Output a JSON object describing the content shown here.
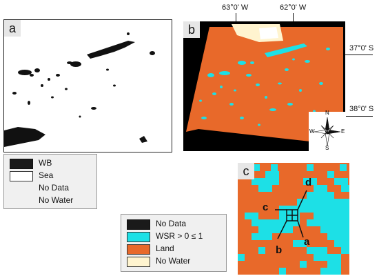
{
  "panels": {
    "a": {
      "label": "a"
    },
    "b": {
      "label": "b"
    },
    "c": {
      "label": "c"
    }
  },
  "coordinates": {
    "top": [
      "63°0' W",
      "62°0' W"
    ],
    "right": [
      "37°0' S",
      "38°0' S"
    ]
  },
  "compass": {
    "n": "N",
    "s": "S",
    "e": "E",
    "w": "W"
  },
  "legend_a": {
    "items": [
      {
        "label": "WB",
        "color": "#1a1a1a"
      },
      {
        "label": "Sea",
        "color": "#ffffff"
      },
      {
        "label": "No Data",
        "color": ""
      },
      {
        "label": "No Water",
        "color": ""
      }
    ]
  },
  "legend_b": {
    "items": [
      {
        "label": "No Data",
        "color": "#1a1a1a"
      },
      {
        "label": "WSR > 0 ≤ 1",
        "color": "#1de0e6"
      },
      {
        "label": "Land",
        "color": "#e8692a"
      },
      {
        "label": "No Water",
        "color": "#fff4cf"
      }
    ]
  },
  "zoom_markers": [
    "a",
    "b",
    "c",
    "d"
  ],
  "colors": {
    "land": "#e8692a",
    "water": "#1de0e6",
    "nodata": "#000000",
    "nowater": "#fff4cf"
  }
}
